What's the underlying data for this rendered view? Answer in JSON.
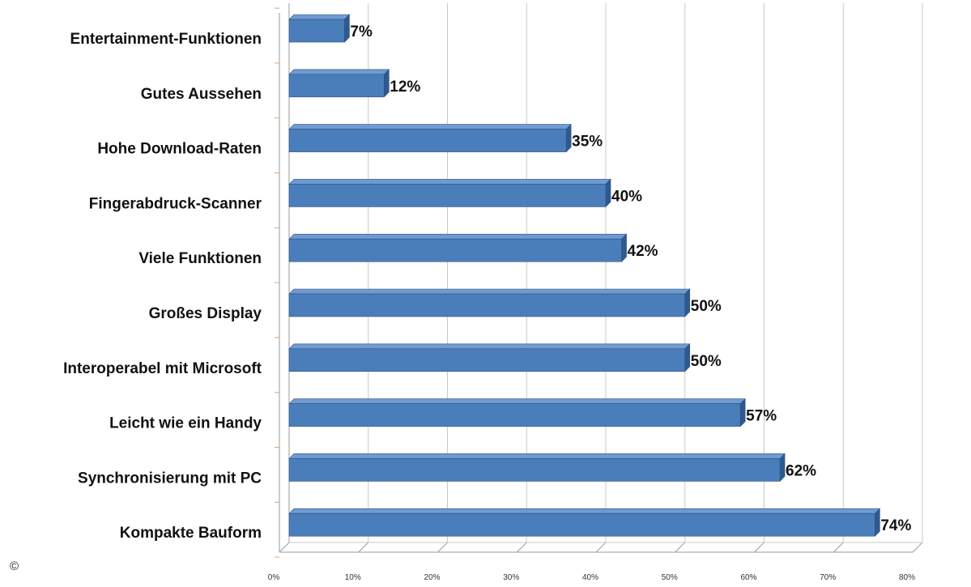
{
  "chart_data": {
    "type": "bar",
    "orientation": "horizontal",
    "categories": [
      "Entertainment-Funktionen",
      "Gutes Aussehen",
      "Hohe Download-Raten",
      "Fingerabdruck-Scanner",
      "Viele Funktionen",
      "Großes Display",
      "Interoperabel mit Microsoft",
      "Leicht wie ein Handy",
      "Synchronisierung mit PC",
      "Kompakte Bauform"
    ],
    "values": [
      7,
      12,
      35,
      40,
      42,
      50,
      50,
      57,
      62,
      74
    ],
    "value_labels": [
      "7%",
      "12%",
      "35%",
      "40%",
      "42%",
      "50%",
      "50%",
      "57%",
      "62%",
      "74%"
    ],
    "xlim": [
      0,
      80
    ],
    "x_ticks": [
      "0%",
      "10%",
      "20%",
      "30%",
      "40%",
      "50%",
      "60%",
      "70%",
      "80%"
    ],
    "grid": true,
    "bar_color": "#4a7ebb",
    "bar_edge_color": "#2c4f7c",
    "title": "",
    "xlabel": "",
    "ylabel": ""
  },
  "footer": {
    "copyright_symbol": "©"
  }
}
